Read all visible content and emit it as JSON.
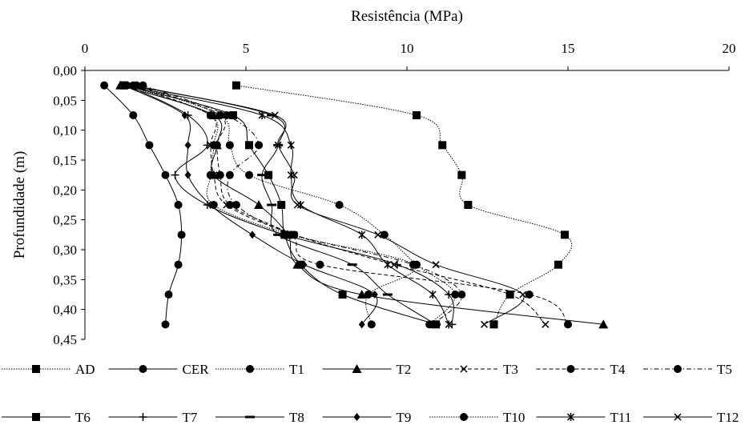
{
  "chart_data": {
    "type": "line",
    "title": "",
    "xlabel": "Resistência (MPa)",
    "ylabel": "Profundidade (m)",
    "xlim": [
      0,
      20
    ],
    "ylim": [
      0,
      0.45
    ],
    "x_ticks": [
      "0",
      "5",
      "10",
      "15",
      "20"
    ],
    "y_ticks": [
      "0,00",
      "0,05",
      "0,10",
      "0,15",
      "0,20",
      "0,25",
      "0,30",
      "0,35",
      "0,40",
      "0,45"
    ],
    "x_axis_position": "top",
    "y_axis_inverted": true,
    "grid": false,
    "legend_position": "bottom",
    "depths": [
      0.025,
      0.075,
      0.125,
      0.175,
      0.225,
      0.275,
      0.325,
      0.375,
      0.425
    ],
    "series": [
      {
        "name": "AD",
        "marker": "square",
        "line": "dotted",
        "values": [
          4.7,
          10.3,
          11.1,
          11.7,
          11.9,
          14.9,
          14.7,
          13.2,
          12.7
        ]
      },
      {
        "name": "CER",
        "marker": "circle",
        "line": "solid",
        "values": [
          0.6,
          1.5,
          2.0,
          2.5,
          2.9,
          3.0,
          2.9,
          2.6,
          2.5
        ]
      },
      {
        "name": "T1",
        "marker": "circle",
        "line": "dotted",
        "values": [
          1.5,
          4.2,
          4.5,
          5.1,
          7.9,
          9.3,
          10.3,
          11.5,
          10.7
        ]
      },
      {
        "name": "T2",
        "marker": "triangle",
        "line": "solid",
        "values": [
          1.1,
          4.0,
          4.1,
          4.0,
          5.4,
          6.3,
          6.6,
          8.6,
          16.1
        ]
      },
      {
        "name": "T3",
        "marker": "x",
        "line": "dashed",
        "values": [
          1.4,
          3.9,
          3.9,
          4.0,
          4.4,
          6.5,
          9.6,
          13.2,
          14.3
        ]
      },
      {
        "name": "T4",
        "marker": "circle",
        "line": "dashed",
        "values": [
          1.6,
          4.2,
          4.1,
          4.2,
          4.5,
          6.4,
          7.3,
          13.8,
          15.0
        ]
      },
      {
        "name": "T5",
        "marker": "circle",
        "line": "dash-dot",
        "values": [
          1.8,
          4.4,
          5.4,
          4.5,
          4.7,
          6.5,
          10.2,
          11.7,
          10.8
        ]
      },
      {
        "name": "T6",
        "marker": "square",
        "line": "solid",
        "values": [
          1.2,
          4.6,
          5.1,
          5.7,
          6.1,
          6.2,
          6.7,
          8.0,
          10.9
        ]
      },
      {
        "name": "T7",
        "marker": "plus",
        "line": "solid",
        "values": [
          1.3,
          3.2,
          3.8,
          2.8,
          3.8,
          6.2,
          9.7,
          11.3,
          11.4
        ]
      },
      {
        "name": "T8",
        "marker": "dash",
        "line": "solid",
        "values": [
          1.5,
          5.8,
          6.0,
          5.5,
          5.8,
          6.0,
          8.3,
          9.4,
          10.9
        ]
      },
      {
        "name": "T9",
        "marker": "diamond",
        "line": "solid",
        "values": [
          1.2,
          3.1,
          3.2,
          3.2,
          3.9,
          5.2,
          6.8,
          9.0,
          8.6
        ]
      },
      {
        "name": "T10",
        "marker": "circle",
        "line": "dotted",
        "values": [
          1.3,
          3.9,
          4.0,
          3.9,
          4.0,
          6.4,
          10.2,
          8.8,
          8.9
        ]
      },
      {
        "name": "T11",
        "marker": "asterisk",
        "line": "solid",
        "values": [
          1.2,
          5.5,
          6.4,
          6.4,
          6.7,
          8.6,
          9.4,
          10.8,
          11.3
        ]
      },
      {
        "name": "T12",
        "marker": "x",
        "line": "solid",
        "values": [
          1.4,
          5.9,
          6.0,
          6.5,
          6.6,
          9.1,
          10.9,
          13.6,
          12.4
        ]
      }
    ]
  }
}
